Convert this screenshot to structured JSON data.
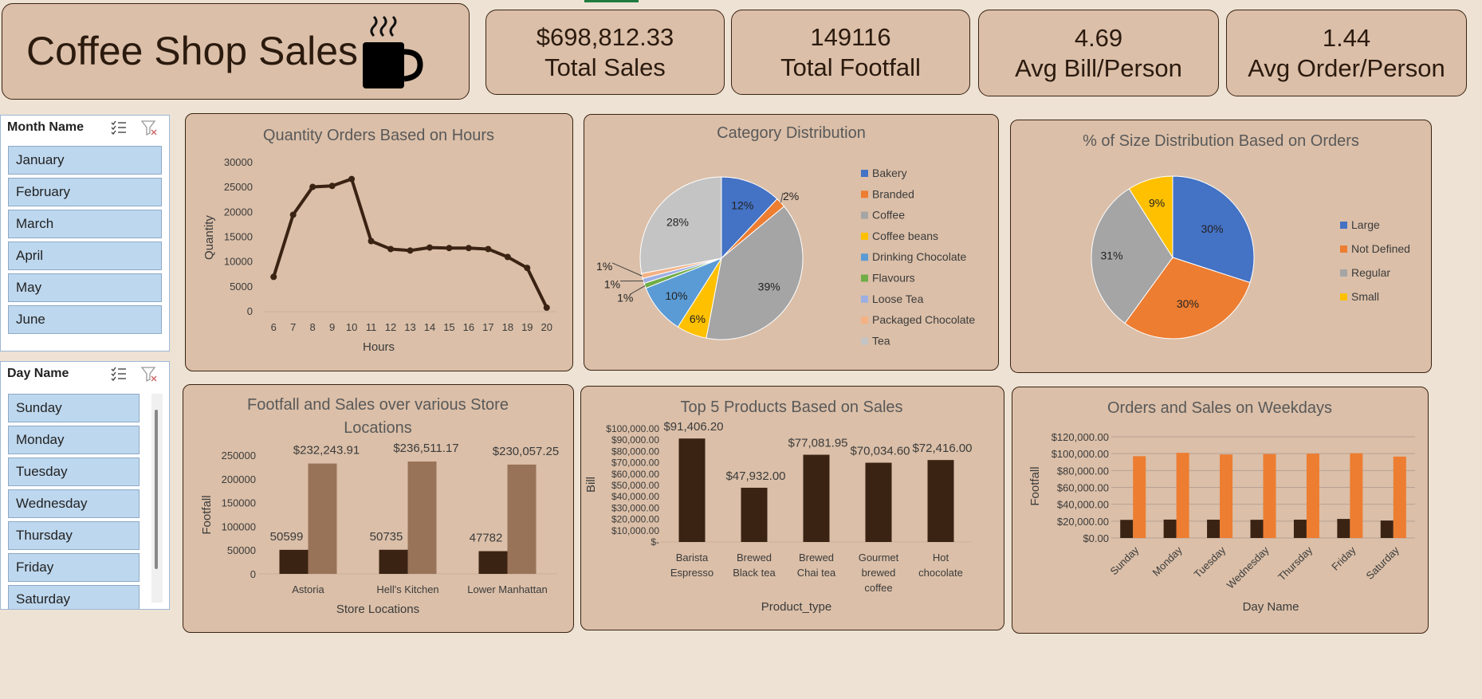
{
  "dashboard": {
    "title": "Coffee Shop Sales",
    "icon": "coffee-cup-icon"
  },
  "kpis": [
    {
      "value": "$698,812.33",
      "label": "Total Sales"
    },
    {
      "value": "149116",
      "label": "Total Footfall"
    },
    {
      "value": "4.69",
      "label": "Avg Bill/Person"
    },
    {
      "value": "1.44",
      "label": "Avg Order/Person"
    }
  ],
  "slicers": {
    "month": {
      "header": "Month Name",
      "items": [
        "January",
        "February",
        "March",
        "April",
        "May",
        "June"
      ]
    },
    "day": {
      "header": "Day Name",
      "items": [
        "Sunday",
        "Monday",
        "Tuesday",
        "Wednesday",
        "Thursday",
        "Friday",
        "Saturday"
      ]
    }
  },
  "colors": {
    "dark_brown": "#3a2313",
    "light_brown": "#997358",
    "orange": "#ed7d31",
    "panel": "#dbbfa8"
  },
  "chart_data": [
    {
      "id": "hours",
      "type": "line",
      "title": "Quantity Orders Based on Hours",
      "xlabel": "Hours",
      "ylabel": "Quantity",
      "x": [
        6,
        7,
        8,
        9,
        10,
        11,
        12,
        13,
        14,
        15,
        16,
        17,
        18,
        19,
        20
      ],
      "values": [
        7000,
        19500,
        25100,
        25300,
        26700,
        14200,
        12600,
        12300,
        12900,
        12800,
        12800,
        12600,
        11000,
        8800,
        800
      ],
      "yticks": [
        "0",
        "5000",
        "10000",
        "15000",
        "20000",
        "25000",
        "30000"
      ],
      "ylim": [
        0,
        30000
      ],
      "color": "#3a2313"
    },
    {
      "id": "category",
      "type": "pie",
      "title": "Category Distribution",
      "slices": [
        {
          "name": "Bakery",
          "value": 12,
          "label": "12%",
          "color": "#4472c4"
        },
        {
          "name": "Branded",
          "value": 2,
          "label": "2%",
          "color": "#ed7d31"
        },
        {
          "name": "Coffee",
          "value": 39,
          "label": "39%",
          "color": "#a5a5a5"
        },
        {
          "name": "Coffee beans",
          "value": 6,
          "label": "6%",
          "color": "#ffc000"
        },
        {
          "name": "Drinking Chocolate",
          "value": 10,
          "label": "10%",
          "color": "#5b9bd5"
        },
        {
          "name": "Flavours",
          "value": 1,
          "label": "1%",
          "color": "#70ad47"
        },
        {
          "name": "Loose Tea",
          "value": 1,
          "label": "1%",
          "color": "#9dafe2"
        },
        {
          "name": "Packaged Chocolate",
          "value": 1,
          "label": "1%",
          "color": "#f4b183"
        },
        {
          "name": "Tea",
          "value": 28,
          "label": "28%",
          "color": "#c4c4c4"
        }
      ]
    },
    {
      "id": "size",
      "type": "pie",
      "title": "% of Size Distribution Based on Orders",
      "slices": [
        {
          "name": "Large",
          "value": 30,
          "label": "30%",
          "color": "#4472c4"
        },
        {
          "name": "Not Defined",
          "value": 30,
          "label": "30%",
          "color": "#ed7d31"
        },
        {
          "name": "Regular",
          "value": 31,
          "label": "31%",
          "color": "#a5a5a5"
        },
        {
          "name": "Small",
          "value": 9,
          "label": "9%",
          "color": "#ffc000"
        }
      ]
    },
    {
      "id": "stores",
      "type": "bar",
      "title": "Footfall and Sales over various Store Locations",
      "title_lines": [
        "Footfall and Sales over various Store",
        "Locations"
      ],
      "xlabel": "Store Locations",
      "ylabel": "Footfall",
      "categories": [
        "Astoria",
        "Hell's Kitchen",
        "Lower Manhattan"
      ],
      "series": [
        {
          "values": [
            50599,
            50735,
            47782
          ],
          "labels": [
            "50599",
            "50735",
            "47782"
          ],
          "color": "#3a2313"
        },
        {
          "values": [
            232243.91,
            236511.17,
            230057.25
          ],
          "labels": [
            "$232,243.91",
            "$236,511.17",
            "$230,057.25"
          ],
          "color": "#997358"
        }
      ],
      "yticks": [
        "0",
        "50000",
        "100000",
        "150000",
        "200000",
        "250000"
      ],
      "ylim": [
        0,
        250000
      ]
    },
    {
      "id": "products",
      "type": "bar",
      "title": "Top 5 Products Based on Sales",
      "xlabel": "Product_type",
      "ylabel": "Bill",
      "categories": [
        [
          "Barista",
          "Espresso"
        ],
        [
          "Brewed",
          "Black tea"
        ],
        [
          "Brewed",
          "Chai tea"
        ],
        [
          "Gourmet",
          "brewed",
          "coffee"
        ],
        [
          "Hot",
          "chocolate"
        ]
      ],
      "values": [
        91406.2,
        47932.0,
        77081.95,
        70034.6,
        72416.0
      ],
      "labels": [
        "$91,406.20",
        "$47,932.00",
        "$77,081.95",
        "$70,034.60",
        "$72,416.00"
      ],
      "yticks": [
        "$-",
        "$10,000.00",
        "$20,000.00",
        "$30,000.00",
        "$40,000.00",
        "$50,000.00",
        "$60,000.00",
        "$70,000.00",
        "$80,000.00",
        "$90,000.00",
        "$100,000.00"
      ],
      "ylim": [
        0,
        100000
      ],
      "color": "#3a2313"
    },
    {
      "id": "weekdays",
      "type": "bar",
      "title": "Orders and Sales on Weekdays",
      "xlabel": "Day Name",
      "ylabel": "Footfall",
      "categories": [
        "Sunday",
        "Monday",
        "Tuesday",
        "Wednesday",
        "Thursday",
        "Friday",
        "Saturday"
      ],
      "series": [
        {
          "values": [
            21500,
            21800,
            21700,
            21600,
            21700,
            22600,
            20700
          ],
          "color": "#3a2313"
        },
        {
          "values": [
            97000,
            101000,
            99000,
            99500,
            100000,
            100500,
            96500
          ],
          "color": "#ed7d31"
        }
      ],
      "yticks": [
        "$0.00",
        "$20,000.00",
        "$40,000.00",
        "$60,000.00",
        "$80,000.00",
        "$100,000.00",
        "$120,000.00"
      ],
      "ylim": [
        0,
        120000
      ],
      "grid": true
    }
  ]
}
